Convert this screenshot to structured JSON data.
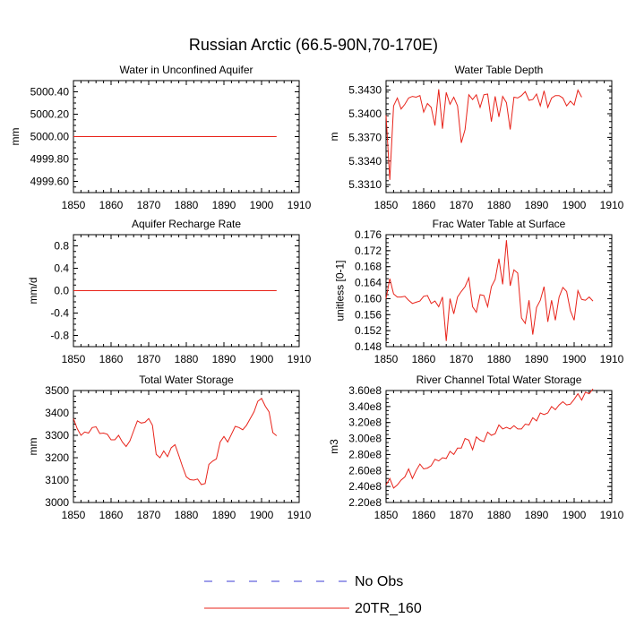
{
  "figure": {
    "title": "Russian Arctic (66.5-90N,70-170E)",
    "legend": [
      {
        "label": "No Obs",
        "style": "dashed",
        "color": "#3b3bd6"
      },
      {
        "label": "20TR_160",
        "style": "solid",
        "color": "#e8231a"
      }
    ]
  },
  "chart_data": [
    {
      "type": "line",
      "title": "Water in Unconfined Aquifer",
      "xlabel": "",
      "ylabel": "mm",
      "xlim": [
        1850,
        1910
      ],
      "ylim": [
        4999.5,
        5000.5
      ],
      "xticks": [
        1850,
        1860,
        1870,
        1880,
        1890,
        1900,
        1910
      ],
      "yticks": [
        4999.6,
        4999.8,
        5000.0,
        5000.2,
        5000.4
      ],
      "ytick_labels": [
        "4999.60",
        "4999.80",
        "5000.00",
        "5000.20",
        "5000.40"
      ],
      "series": [
        {
          "name": "20TR_160",
          "x_start": 1850,
          "x_step": 1,
          "values": [
            5000,
            5000,
            5000,
            5000,
            5000,
            5000,
            5000,
            5000,
            5000,
            5000,
            5000,
            5000,
            5000,
            5000,
            5000,
            5000,
            5000,
            5000,
            5000,
            5000,
            5000,
            5000,
            5000,
            5000,
            5000,
            5000,
            5000,
            5000,
            5000,
            5000,
            5000,
            5000,
            5000,
            5000,
            5000,
            5000,
            5000,
            5000,
            5000,
            5000,
            5000,
            5000,
            5000,
            5000,
            5000,
            5000,
            5000,
            5000,
            5000,
            5000,
            5000,
            5000,
            5000,
            5000,
            5000
          ]
        }
      ]
    },
    {
      "type": "line",
      "title": "Water Table Depth",
      "xlabel": "",
      "ylabel": "m",
      "xlim": [
        1850,
        1910
      ],
      "ylim": [
        5.33,
        5.3442
      ],
      "xticks": [
        1850,
        1860,
        1870,
        1880,
        1890,
        1900,
        1910
      ],
      "yticks": [
        5.331,
        5.334,
        5.337,
        5.34,
        5.343
      ],
      "ytick_labels": [
        "5.3310",
        "5.3340",
        "5.3370",
        "5.3400",
        "5.3430"
      ],
      "series": [
        {
          "name": "20TR_160",
          "x_start": 1850,
          "x_step": 1,
          "values": [
            5.3398,
            5.3316,
            5.341,
            5.342,
            5.3406,
            5.3412,
            5.342,
            5.3422,
            5.3421,
            5.3423,
            5.3402,
            5.3413,
            5.3408,
            5.3385,
            5.3431,
            5.3381,
            5.3427,
            5.3412,
            5.3421,
            5.341,
            5.3363,
            5.338,
            5.3424,
            5.3418,
            5.3424,
            5.3408,
            5.3424,
            5.3425,
            5.339,
            5.3422,
            5.3396,
            5.3422,
            5.3414,
            5.338,
            5.3421,
            5.342,
            5.3423,
            5.3428,
            5.3417,
            5.3418,
            5.3425,
            5.341,
            5.3429,
            5.3408,
            5.342,
            5.3423,
            5.3423,
            5.342,
            5.341,
            5.3416,
            5.3411,
            5.343,
            5.3421
          ]
        }
      ]
    },
    {
      "type": "line",
      "title": "Aquifer Recharge Rate",
      "xlabel": "",
      "ylabel": "mm/d",
      "xlim": [
        1850,
        1910
      ],
      "ylim": [
        -1.0,
        1.0
      ],
      "xticks": [
        1850,
        1860,
        1870,
        1880,
        1890,
        1900,
        1910
      ],
      "yticks": [
        -0.8,
        -0.4,
        0.0,
        0.4,
        0.8
      ],
      "ytick_labels": [
        "-0.8",
        "-0.4",
        "0.0",
        "0.4",
        "0.8"
      ],
      "series": [
        {
          "name": "20TR_160",
          "x_start": 1850,
          "x_step": 1,
          "values": [
            0,
            0,
            0,
            0,
            0,
            0,
            0,
            0,
            0,
            0,
            0,
            0,
            0,
            0,
            0,
            0,
            0,
            0,
            0,
            0,
            0,
            0,
            0,
            0,
            0,
            0,
            0,
            0,
            0,
            0,
            0,
            0,
            0,
            0,
            0,
            0,
            0,
            0,
            0,
            0,
            0,
            0,
            0,
            0,
            0,
            0,
            0,
            0,
            0,
            0,
            0,
            0,
            0,
            0,
            0
          ]
        }
      ]
    },
    {
      "type": "line",
      "title": "Frac Water Table at Surface",
      "xlabel": "",
      "ylabel": "unitless [0-1]",
      "xlim": [
        1850,
        1910
      ],
      "ylim": [
        0.148,
        0.176
      ],
      "xticks": [
        1850,
        1860,
        1870,
        1880,
        1890,
        1900,
        1910
      ],
      "yticks": [
        0.148,
        0.152,
        0.156,
        0.16,
        0.164,
        0.168,
        0.172,
        0.176
      ],
      "ytick_labels": [
        "0.148",
        "0.152",
        "0.156",
        "0.160",
        "0.164",
        "0.168",
        "0.172",
        "0.176"
      ],
      "series": [
        {
          "name": "20TR_160",
          "x_start": 1850,
          "x_step": 1,
          "values": [
            0.16,
            0.165,
            0.1612,
            0.1604,
            0.1604,
            0.1606,
            0.1596,
            0.1588,
            0.1591,
            0.1594,
            0.1606,
            0.1608,
            0.1588,
            0.1594,
            0.158,
            0.1604,
            0.1494,
            0.16,
            0.1562,
            0.1604,
            0.1618,
            0.163,
            0.1652,
            0.158,
            0.1566,
            0.161,
            0.1608,
            0.158,
            0.163,
            0.1648,
            0.17,
            0.1636,
            0.1746,
            0.1632,
            0.1672,
            0.1664,
            0.1552,
            0.1538,
            0.1596,
            0.151,
            0.1578,
            0.1596,
            0.163,
            0.1542,
            0.1596,
            0.1546,
            0.1604,
            0.1628,
            0.1618,
            0.157,
            0.1546,
            0.162,
            0.1598,
            0.1596,
            0.1604,
            0.1594
          ]
        }
      ]
    },
    {
      "type": "line",
      "title": "Total Water Storage",
      "xlabel": "",
      "ylabel": "mm",
      "xlim": [
        1850,
        1910
      ],
      "ylim": [
        3000,
        3500
      ],
      "xticks": [
        1850,
        1860,
        1870,
        1880,
        1890,
        1900,
        1910
      ],
      "yticks": [
        3000,
        3100,
        3200,
        3300,
        3400,
        3500
      ],
      "ytick_labels": [
        "3000",
        "3100",
        "3200",
        "3300",
        "3400",
        "3500"
      ],
      "series": [
        {
          "name": "20TR_160",
          "x_start": 1850,
          "x_step": 1,
          "values": [
            3375,
            3330,
            3300,
            3315,
            3310,
            3335,
            3338,
            3308,
            3310,
            3305,
            3280,
            3280,
            3300,
            3270,
            3250,
            3275,
            3320,
            3365,
            3355,
            3358,
            3375,
            3345,
            3215,
            3200,
            3230,
            3205,
            3245,
            3258,
            3210,
            3160,
            3115,
            3102,
            3100,
            3105,
            3080,
            3085,
            3170,
            3185,
            3195,
            3270,
            3295,
            3270,
            3305,
            3340,
            3335,
            3325,
            3345,
            3375,
            3405,
            3452,
            3465,
            3430,
            3405,
            3312,
            3298
          ]
        }
      ]
    },
    {
      "type": "line",
      "title": "River Channel Total Water Storage",
      "xlabel": "",
      "ylabel": "m3",
      "xlim": [
        1850,
        1910
      ],
      "ylim": [
        220000000.0,
        360000000.0
      ],
      "xticks": [
        1850,
        1860,
        1870,
        1880,
        1890,
        1900,
        1910
      ],
      "yticks": [
        220000000.0,
        240000000.0,
        260000000.0,
        280000000.0,
        300000000.0,
        320000000.0,
        340000000.0,
        360000000.0
      ],
      "ytick_labels": [
        "2.20e8",
        "2.40e8",
        "2.60e8",
        "2.80e8",
        "3.00e8",
        "3.20e8",
        "3.40e8",
        "3.60e8"
      ],
      "series": [
        {
          "name": "20TR_160",
          "x_start": 1850,
          "x_step": 1,
          "values": [
            242000000.0,
            250000000.0,
            238000000.0,
            242000000.0,
            248000000.0,
            252000000.0,
            262000000.0,
            250000000.0,
            260000000.0,
            268000000.0,
            262000000.0,
            263000000.0,
            266000000.0,
            274000000.0,
            272000000.0,
            276000000.0,
            275000000.0,
            284000000.0,
            280000000.0,
            288000000.0,
            288000000.0,
            300000000.0,
            298000000.0,
            286000000.0,
            302000000.0,
            298000000.0,
            296000000.0,
            308000000.0,
            304000000.0,
            306000000.0,
            317000000.0,
            312000000.0,
            314000000.0,
            312000000.0,
            316000000.0,
            312000000.0,
            312000000.0,
            318000000.0,
            317000000.0,
            326000000.0,
            322000000.0,
            332000000.0,
            330000000.0,
            332000000.0,
            340000000.0,
            336000000.0,
            342000000.0,
            346000000.0,
            342000000.0,
            343000000.0,
            349000000.0,
            356000000.0,
            348000000.0,
            358000000.0,
            356000000.0,
            362000000.0
          ]
        }
      ]
    }
  ]
}
